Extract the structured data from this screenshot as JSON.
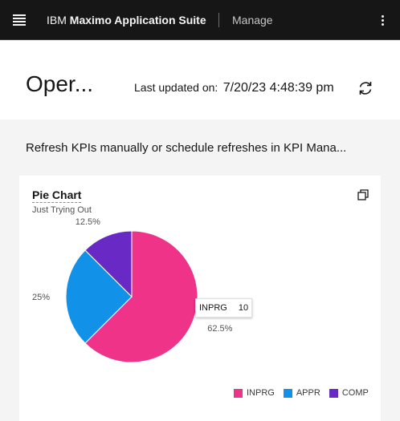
{
  "topbar": {
    "brand_prefix": "IBM",
    "brand_name": "Maximo Application Suite",
    "app_name": "Manage"
  },
  "header": {
    "page_title": "Oper...",
    "updated_label": "Last updated on:",
    "updated_value": "7/20/23 4:48:39 pm"
  },
  "notice": "Refresh KPIs manually or schedule refreshes in KPI Mana...",
  "card": {
    "title": "Pie Chart",
    "subtitle": "Just Trying Out"
  },
  "chart_data": {
    "type": "pie",
    "title": "Pie Chart",
    "subtitle": "Just Trying Out",
    "legend_position": "bottom-right",
    "slices": [
      {
        "name": "INPRG",
        "value": 10,
        "percent_label": "62.5%",
        "color": "#ee3388"
      },
      {
        "name": "APPR",
        "value": 4,
        "percent_label": "25%",
        "color": "#1192e8"
      },
      {
        "name": "COMP",
        "value": 2,
        "percent_label": "12.5%",
        "color": "#6929c4"
      }
    ]
  },
  "tooltip": {
    "key": "INPRG",
    "value": "10"
  },
  "icons": {
    "menu": "hamburger-menu-icon",
    "overflow": "overflow-menu-icon",
    "refresh": "refresh-icon",
    "expand": "expand-icon"
  }
}
